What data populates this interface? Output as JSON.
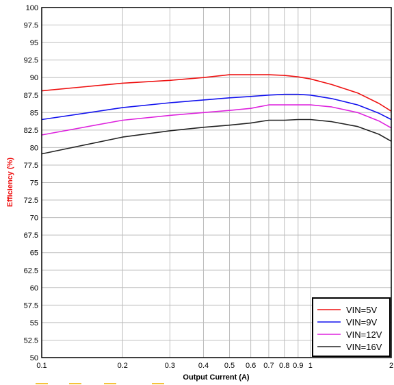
{
  "chart_data": {
    "type": "line",
    "title": "",
    "xlabel": "Output Current (A)",
    "ylabel": "Efficiency (%)",
    "xscale": "log",
    "xlim": [
      0.1,
      2
    ],
    "ylim": [
      50,
      100
    ],
    "grid": true,
    "legend_position": "bottom-right",
    "x_ticks": [
      0.1,
      0.2,
      0.3,
      0.4,
      0.5,
      0.6,
      0.7,
      0.8,
      0.9,
      1,
      2
    ],
    "x_tick_labels": [
      "0.1",
      "0.2",
      "0.3",
      "0.4",
      "0.5",
      "0.6",
      "0.7",
      "0.8",
      "0.9",
      "1",
      "2"
    ],
    "y_ticks": [
      50,
      52.5,
      55,
      57.5,
      60,
      62.5,
      65,
      67.5,
      70,
      72.5,
      75,
      77.5,
      80,
      82.5,
      85,
      87.5,
      90,
      92.5,
      95,
      97.5,
      100
    ],
    "y_tick_labels": [
      "50",
      "52.5",
      "55",
      "57.5",
      "60",
      "62.5",
      "65",
      "67.5",
      "70",
      "72.5",
      "75",
      "77.5",
      "80",
      "82.5",
      "85",
      "87.5",
      "90",
      "92.5",
      "95",
      "97.5",
      "100"
    ],
    "series": [
      {
        "name": "VIN=5V",
        "color": "#ee1111",
        "x": [
          0.1,
          0.2,
          0.3,
          0.4,
          0.5,
          0.6,
          0.7,
          0.8,
          0.9,
          1.0,
          1.2,
          1.5,
          1.8,
          2.0
        ],
        "y": [
          88.1,
          89.2,
          89.6,
          90.0,
          90.4,
          90.4,
          90.4,
          90.3,
          90.1,
          89.8,
          89.0,
          87.8,
          86.3,
          85.2
        ]
      },
      {
        "name": "VIN=9V",
        "color": "#1111ee",
        "x": [
          0.1,
          0.2,
          0.3,
          0.4,
          0.5,
          0.6,
          0.7,
          0.8,
          0.9,
          1.0,
          1.2,
          1.5,
          1.8,
          2.0
        ],
        "y": [
          84.0,
          85.7,
          86.4,
          86.8,
          87.1,
          87.3,
          87.5,
          87.6,
          87.6,
          87.5,
          87.0,
          86.1,
          84.9,
          84.0
        ]
      },
      {
        "name": "VIN=12V",
        "color": "#dd22dd",
        "x": [
          0.1,
          0.2,
          0.3,
          0.4,
          0.5,
          0.6,
          0.7,
          0.8,
          0.9,
          1.0,
          1.2,
          1.5,
          1.8,
          2.0
        ],
        "y": [
          81.8,
          83.9,
          84.6,
          85.0,
          85.3,
          85.6,
          86.1,
          86.1,
          86.1,
          86.1,
          85.8,
          85.0,
          83.8,
          82.8
        ]
      },
      {
        "name": "VIN=16V",
        "color": "#222222",
        "x": [
          0.1,
          0.2,
          0.3,
          0.4,
          0.5,
          0.6,
          0.7,
          0.8,
          0.9,
          1.0,
          1.2,
          1.5,
          1.8,
          2.0
        ],
        "y": [
          79.1,
          81.5,
          82.4,
          82.9,
          83.2,
          83.5,
          83.9,
          83.9,
          84.0,
          84.0,
          83.7,
          83.0,
          81.9,
          80.9
        ]
      }
    ]
  },
  "colors": {
    "ylabel": "#ee1111",
    "grid": "#bdbdbd",
    "axis": "#000000",
    "footer_marks": "#f5c33b"
  }
}
